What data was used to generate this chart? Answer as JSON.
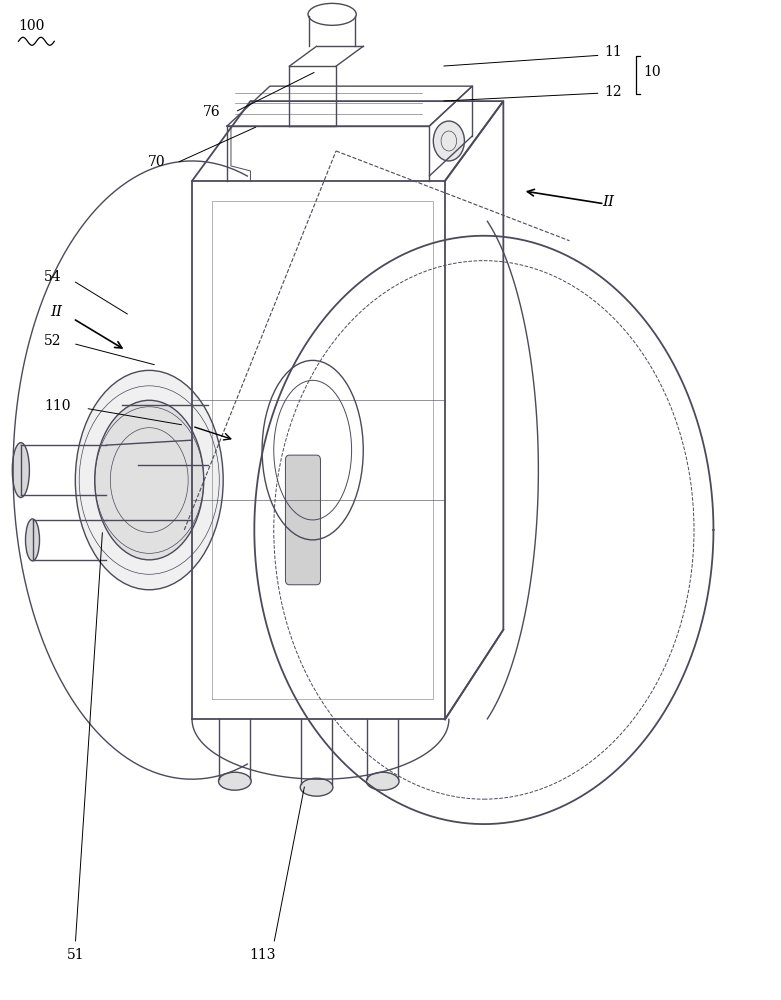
{
  "background_color": "#ffffff",
  "line_color": "#4a4a5a",
  "annotation_color": "#000000",
  "figure_width": 7.81,
  "figure_height": 10.0
}
